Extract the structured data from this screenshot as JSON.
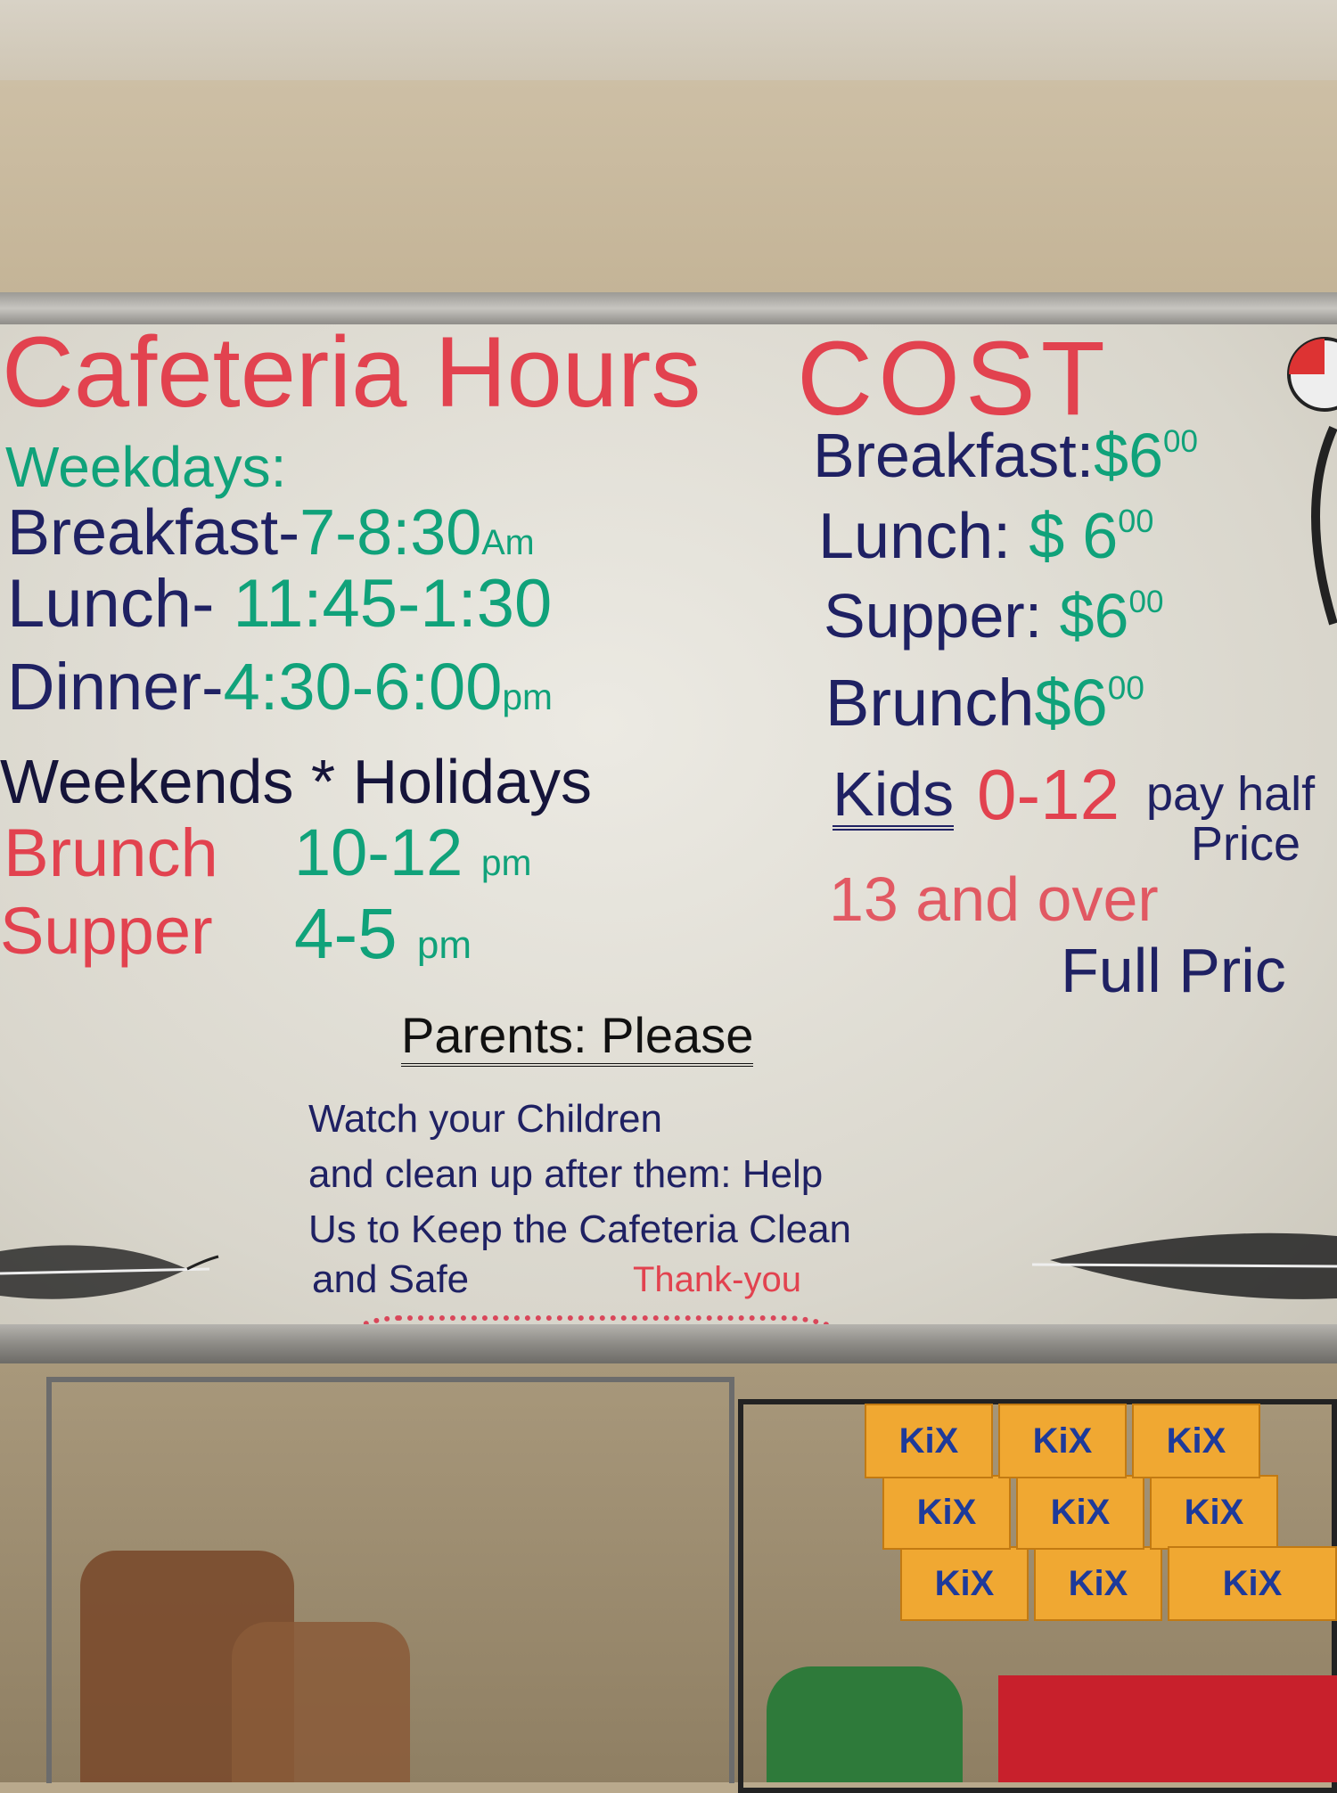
{
  "hours": {
    "title": "Cafeteria Hours",
    "weekdays_label": "Weekdays:",
    "weekdays": [
      {
        "meal": "Breakfast",
        "sep": "-",
        "time": "7-8:30",
        "suffix": "Am"
      },
      {
        "meal": "Lunch",
        "sep": "-",
        "time": "11:45-1:30",
        "suffix": ""
      },
      {
        "meal": "Dinner",
        "sep": "-",
        "time": "4:30-6:00",
        "suffix": "pm"
      }
    ],
    "weekends_label": "Weekends * Holidays",
    "weekends": [
      {
        "meal": "Brunch",
        "time": "10-12",
        "suffix": "pm"
      },
      {
        "meal": "Supper",
        "time": "4-5",
        "suffix": "pm"
      }
    ]
  },
  "cost": {
    "title": "COST",
    "items": [
      {
        "meal": "Breakfast:",
        "price": "$6",
        "cents": "00"
      },
      {
        "meal": "Lunch:",
        "price": "$ 6",
        "cents": "00"
      },
      {
        "meal": "Supper:",
        "price": "$6",
        "cents": "00"
      },
      {
        "meal": "Brunch",
        "price": "$6",
        "cents": "00"
      }
    ],
    "kids_label": "Kids",
    "kids_ages": "0-12",
    "kids_rule_1": "pay half",
    "kids_rule_2": "Price",
    "adults_ages": "13 and over",
    "adults_rule": "Full Pric"
  },
  "notice": {
    "heading": "Parents: Please",
    "lines": [
      "Watch your Children",
      "and clean up after them: Help",
      "Us to Keep the Cafeteria Clean",
      "and Safe"
    ],
    "thanks": "Thank-you"
  },
  "products": {
    "cereal_brand": "KiX"
  },
  "colors": {
    "red": "#e2424f",
    "green": "#10a27a",
    "navy": "#1f2163"
  }
}
